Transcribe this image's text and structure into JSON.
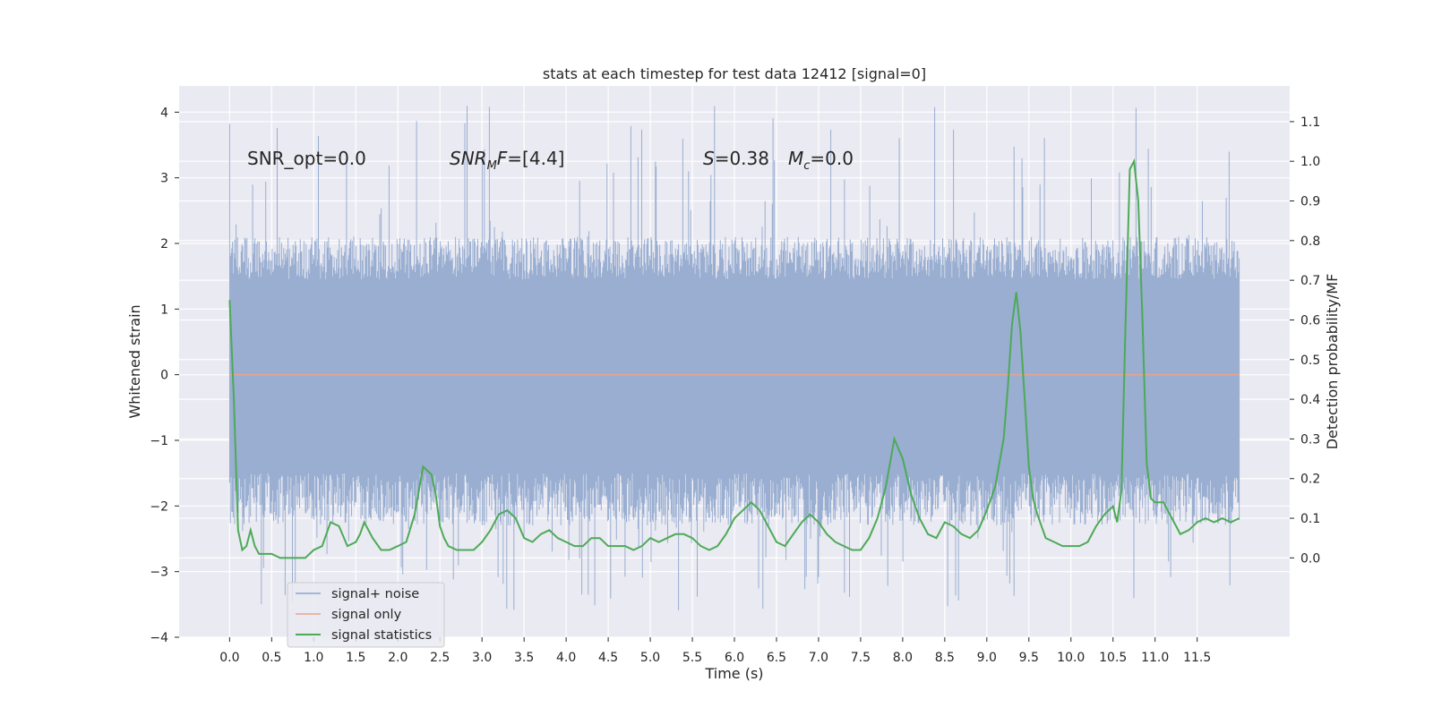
{
  "chart_data": {
    "type": "line",
    "title": "stats at each timestep for test data 12412 [signal=0]",
    "xlabel": "Time (s)",
    "ylabel": "Whitened strain",
    "ylabel_right": "Detection probability/MF",
    "xlim": [
      -0.6,
      12.6
    ],
    "ylim": [
      -4.0,
      4.4
    ],
    "ylim_right": [
      -0.2,
      1.19
    ],
    "x_ticks": [
      "0.0",
      "0.5",
      "1.0",
      "1.5",
      "2.0",
      "2.5",
      "3.0",
      "3.5",
      "4.0",
      "4.5",
      "5.0",
      "5.5",
      "6.0",
      "6.5",
      "7.0",
      "7.5",
      "8.0",
      "8.5",
      "9.0",
      "9.5",
      "10.0",
      "10.5",
      "11.0",
      "11.5"
    ],
    "y_ticks": [
      "4",
      "3",
      "2",
      "1",
      "0",
      "−1",
      "−2",
      "−3",
      "−4"
    ],
    "y_ticks_right": [
      "1.1",
      "1.0",
      "0.9",
      "0.8",
      "0.7",
      "0.6",
      "0.5",
      "0.4",
      "0.3",
      "0.2",
      "0.1",
      "0.0"
    ],
    "grid": true,
    "legend": {
      "placement": "lower-left",
      "entries": [
        {
          "label": "signal+ noise",
          "color": "#8ea3cc"
        },
        {
          "label": "signal only",
          "color": "#e9a48a"
        },
        {
          "label": "signal statistics",
          "color": "#4daa57"
        }
      ]
    },
    "annotations": {
      "snr_opt": "SNR_opt=0.0",
      "snr_mf_base": "SNR",
      "snr_mf_sub": "M",
      "snr_mf_rest": "F=[4.4]",
      "s_base": "S",
      "s_rest": "=0.38",
      "mc_base": "M",
      "mc_sub": "c",
      "mc_rest": "=0.0"
    },
    "noise": {
      "x_range": [
        0.0,
        12.0
      ],
      "dense_band": [
        -1.5,
        1.45
      ],
      "typical_range": [
        -2.3,
        2.1
      ],
      "min": -3.6,
      "max": 4.1
    },
    "signal_only": {
      "x": [
        0.0,
        12.0
      ],
      "y": [
        0.0,
        0.0
      ]
    },
    "series": [
      {
        "name": "signal statistics",
        "axis": "right",
        "x": [
          0.0,
          0.05,
          0.1,
          0.15,
          0.2,
          0.25,
          0.3,
          0.35,
          0.4,
          0.45,
          0.5,
          0.6,
          0.7,
          0.8,
          0.9,
          1.0,
          1.1,
          1.2,
          1.3,
          1.4,
          1.5,
          1.55,
          1.6,
          1.7,
          1.8,
          1.9,
          1.95,
          2.0,
          2.1,
          2.2,
          2.3,
          2.4,
          2.45,
          2.5,
          2.55,
          2.6,
          2.7,
          2.8,
          2.9,
          3.0,
          3.1,
          3.2,
          3.3,
          3.4,
          3.5,
          3.6,
          3.7,
          3.8,
          3.9,
          4.0,
          4.1,
          4.2,
          4.3,
          4.4,
          4.5,
          4.6,
          4.7,
          4.8,
          4.9,
          5.0,
          5.1,
          5.2,
          5.3,
          5.4,
          5.5,
          5.6,
          5.7,
          5.8,
          5.9,
          6.0,
          6.1,
          6.2,
          6.3,
          6.4,
          6.5,
          6.6,
          6.7,
          6.8,
          6.9,
          7.0,
          7.1,
          7.2,
          7.3,
          7.4,
          7.5,
          7.6,
          7.7,
          7.8,
          7.9,
          8.0,
          8.1,
          8.2,
          8.3,
          8.4,
          8.5,
          8.6,
          8.7,
          8.8,
          8.9,
          9.0,
          9.1,
          9.2,
          9.25,
          9.3,
          9.35,
          9.4,
          9.45,
          9.5,
          9.55,
          9.6,
          9.7,
          9.8,
          9.9,
          10.0,
          10.1,
          10.2,
          10.3,
          10.4,
          10.5,
          10.55,
          10.6,
          10.65,
          10.7,
          10.75,
          10.8,
          10.85,
          10.9,
          10.95,
          11.0,
          11.1,
          11.2,
          11.3,
          11.4,
          11.5,
          11.6,
          11.7,
          11.8,
          11.9,
          12.0
        ],
        "y": [
          0.65,
          0.4,
          0.07,
          0.02,
          0.03,
          0.07,
          0.03,
          0.01,
          0.01,
          0.01,
          0.01,
          0.0,
          0.0,
          0.0,
          0.0,
          0.02,
          0.03,
          0.09,
          0.08,
          0.03,
          0.04,
          0.06,
          0.09,
          0.05,
          0.02,
          0.02,
          0.025,
          0.03,
          0.04,
          0.11,
          0.23,
          0.21,
          0.16,
          0.08,
          0.05,
          0.03,
          0.02,
          0.02,
          0.02,
          0.04,
          0.07,
          0.11,
          0.12,
          0.1,
          0.05,
          0.04,
          0.06,
          0.07,
          0.05,
          0.04,
          0.03,
          0.03,
          0.05,
          0.05,
          0.03,
          0.03,
          0.03,
          0.02,
          0.03,
          0.05,
          0.04,
          0.05,
          0.06,
          0.06,
          0.05,
          0.03,
          0.02,
          0.03,
          0.06,
          0.1,
          0.12,
          0.14,
          0.12,
          0.08,
          0.04,
          0.03,
          0.06,
          0.09,
          0.11,
          0.09,
          0.06,
          0.04,
          0.03,
          0.02,
          0.02,
          0.05,
          0.1,
          0.18,
          0.3,
          0.25,
          0.16,
          0.1,
          0.06,
          0.05,
          0.09,
          0.08,
          0.06,
          0.05,
          0.07,
          0.12,
          0.18,
          0.3,
          0.43,
          0.59,
          0.67,
          0.57,
          0.4,
          0.23,
          0.15,
          0.11,
          0.05,
          0.04,
          0.03,
          0.03,
          0.03,
          0.04,
          0.08,
          0.11,
          0.13,
          0.09,
          0.17,
          0.6,
          0.98,
          1.0,
          0.9,
          0.6,
          0.24,
          0.15,
          0.14,
          0.14,
          0.1,
          0.06,
          0.07,
          0.09,
          0.1,
          0.09,
          0.1,
          0.09,
          0.1
        ]
      }
    ]
  }
}
